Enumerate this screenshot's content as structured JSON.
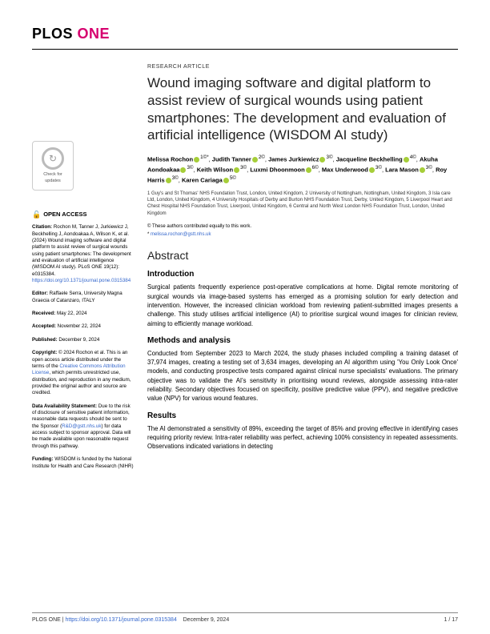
{
  "journal": {
    "plos": "PLOS",
    "one": "ONE"
  },
  "article_type": "RESEARCH ARTICLE",
  "title": "Wound imaging software and digital platform to assist review of surgical wounds using patient smartphones: The development and evaluation of artificial intelligence (WISDOM AI study)",
  "authors_html": "Melissa Rochon|1©*, Judith Tanner|2©, James Jurkiewicz|3©, Jacqueline Beckhelling|4©, Akuha Aondoakaa|3©, Keith Wilson|3©, Luxmi Dhoonmoon|6©, Max Underwood|3©, Lara Mason|3©, Roy Harris|3©, Karen Cariaga|5©",
  "affiliations": "1 Guy's and St Thomas' NHS Foundation Trust, London, United Kingdom, 2 University of Nottingham, Nottingham, United Kingdom, 3 Isla care Ltd, London, United Kingdom, 4 University Hospitals of Derby and Burton NHS Foundation Trust, Derby, United Kingdom, 5 Liverpool Heart and Chest Hospital NHS Foundation Trust, Liverpool, United Kingdom, 6 Central and North West London NHS Foundation Trust, London, United Kingdom",
  "contrib_equal": "© These authors contributed equally to this work.",
  "corresponding": "* melissa.rochon@gstt.nhs.uk",
  "check_updates": "Check for updates",
  "open_access_label": "OPEN ACCESS",
  "citation": {
    "label": "Citation:",
    "text": "Rochon M, Tanner J, Jurkiewicz J, Beckhelling J, Aondoakaa A, Wilson K, et al. (2024) Wound imaging software and digital platform to assist review of surgical wounds using patient smartphones: The development and evaluation of artificial intelligence (WISDOM AI study). PLoS ONE 19(12): e0315384. ",
    "link": "https://doi.org/10.1371/journal.pone.0315384"
  },
  "editor": {
    "label": "Editor:",
    "text": "Raffaele Serra, University Magna Graecia of Catanzaro, ITALY"
  },
  "received": {
    "label": "Received:",
    "text": "May 22, 2024"
  },
  "accepted": {
    "label": "Accepted:",
    "text": "November 22, 2024"
  },
  "published": {
    "label": "Published:",
    "text": "December 9, 2024"
  },
  "copyright": {
    "label": "Copyright:",
    "text": "© 2024 Rochon et al. This is an open access article distributed under the terms of the ",
    "link_text": "Creative Commons Attribution License",
    "text2": ", which permits unrestricted use, distribution, and reproduction in any medium, provided the original author and source are credited."
  },
  "data_avail": {
    "label": "Data Availability Statement:",
    "text": "Due to the risk of disclosure of sensitive patient information, reasonable data requests should be sent to the Sponsor (",
    "link_text": "R&D@gstt.nhs.uk",
    "text2": ") for data access subject to sponsor approval. Data will be made available upon reasonable request through this pathway."
  },
  "funding": {
    "label": "Funding:",
    "text": "WISDOM is funded by the National Institute for Health and Care Research (NIHR)"
  },
  "abstract_heading": "Abstract",
  "sections": {
    "intro": {
      "heading": "Introduction",
      "text": "Surgical patients frequently experience post-operative complications at home. Digital remote monitoring of surgical wounds via image-based systems has emerged as a promising solution for early detection and intervention. However, the increased clinician workload from reviewing patient-submitted images presents a challenge. This study utilises artificial intelligence (AI) to prioritise surgical wound images for clinician review, aiming to efficiently manage workload."
    },
    "methods": {
      "heading": "Methods and analysis",
      "text": "Conducted from September 2023 to March 2024, the study phases included compiling a training dataset of 37,974 images, creating a testing set of 3,634 images, developing an AI algorithm using 'You Only Look Once' models, and conducting prospective tests compared against clinical nurse specialists' evaluations. The primary objective was to validate the AI's sensitivity in prioritising wound reviews, alongside assessing intra-rater reliability. Secondary objectives focused on specificity, positive predictive value (PPV), and negative predictive value (NPV) for various wound features."
    },
    "results": {
      "heading": "Results",
      "text": "The AI demonstrated a sensitivity of 89%, exceeding the target of 85% and proving effective in identifying cases requiring priority review. Intra-rater reliability was perfect, achieving 100% consistency in repeated assessments. Observations indicated variations in detecting"
    }
  },
  "footer": {
    "journal": "PLOS ONE | ",
    "doi": "https://doi.org/10.1371/journal.pone.0315384",
    "date": "December 9, 2024",
    "page": "1 / 17"
  }
}
